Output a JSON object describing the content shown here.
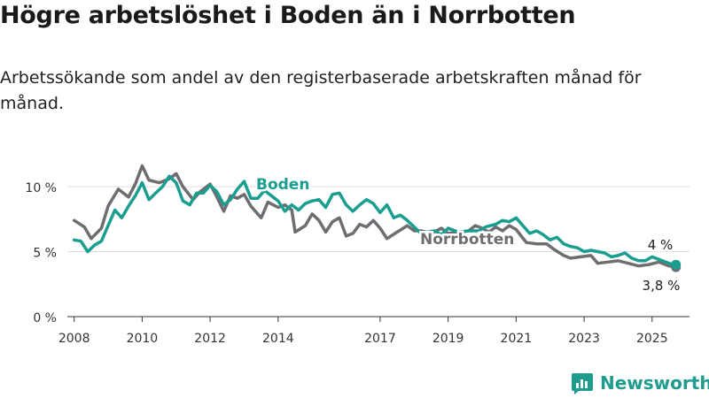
{
  "title": "Högre arbetslöshet i Boden än i Norrbotten",
  "subtitle": "Arbetssökande som andel av den registerbaserade arbetskraften månad för månad.",
  "brand": {
    "name": "Newsworthy",
    "icon": "newsworthy-logo-icon",
    "color": "#1f9c8d"
  },
  "colors": {
    "boden": "#1a9e8f",
    "norrbotten": "#6f6d71",
    "grid": "#dddddd",
    "axis": "#333333"
  },
  "chart_data": {
    "type": "line",
    "xlim": [
      2007.8,
      2026.1
    ],
    "ylim": [
      0,
      10
    ],
    "yticks": [
      0,
      5,
      10
    ],
    "ytick_labels": [
      "0 %",
      "5 %",
      "10 %"
    ],
    "xticks": [
      2008,
      2010,
      2012,
      2014,
      2017,
      2019,
      2021,
      2023,
      2025
    ],
    "xtick_labels": [
      "2008",
      "2010",
      "2012",
      "2014",
      "2017",
      "2019",
      "2021",
      "2023",
      "2025"
    ],
    "grid": true,
    "series": [
      {
        "name": "Norrbotten",
        "end_label": "3,8 %",
        "x": [
          2008.0,
          2008.3,
          2008.5,
          2008.8,
          2009.0,
          2009.3,
          2009.6,
          2009.8,
          2010.0,
          2010.2,
          2010.5,
          2010.8,
          2011.0,
          2011.2,
          2011.5,
          2011.7,
          2012.0,
          2012.2,
          2012.4,
          2012.6,
          2012.8,
          2013.0,
          2013.2,
          2013.5,
          2013.7,
          2014.0,
          2014.2,
          2014.4,
          2014.5,
          2014.8,
          2015.0,
          2015.2,
          2015.4,
          2015.6,
          2015.8,
          2016.0,
          2016.2,
          2016.4,
          2016.6,
          2016.8,
          2017.0,
          2017.2,
          2017.5,
          2017.8,
          2018.0,
          2018.2,
          2018.5,
          2018.8,
          2019.0,
          2019.3,
          2019.6,
          2019.8,
          2020.0,
          2020.2,
          2020.4,
          2020.6,
          2020.8,
          2021.0,
          2021.3,
          2021.6,
          2021.9,
          2022.1,
          2022.4,
          2022.6,
          2022.9,
          2023.2,
          2023.4,
          2023.7,
          2024.0,
          2024.3,
          2024.6,
          2024.9,
          2025.2,
          2025.5,
          2025.7
        ],
        "y": [
          7.4,
          6.9,
          6.0,
          6.8,
          8.5,
          9.8,
          9.2,
          10.2,
          11.6,
          10.5,
          10.3,
          10.6,
          11.0,
          10.0,
          9.0,
          9.6,
          10.2,
          9.2,
          8.1,
          9.3,
          9.1,
          9.4,
          8.5,
          7.6,
          8.8,
          8.4,
          8.6,
          8.2,
          6.5,
          7.0,
          7.9,
          7.4,
          6.5,
          7.3,
          7.6,
          6.2,
          6.4,
          7.1,
          6.9,
          7.4,
          6.8,
          6.0,
          6.5,
          7.0,
          6.6,
          6.6,
          6.4,
          6.8,
          6.4,
          6.5,
          6.6,
          7.0,
          6.8,
          6.5,
          6.9,
          6.6,
          7.0,
          6.7,
          5.7,
          5.6,
          5.6,
          5.2,
          4.7,
          4.5,
          4.6,
          4.7,
          4.1,
          4.2,
          4.3,
          4.1,
          3.9,
          4.0,
          4.2,
          3.9,
          3.8
        ]
      },
      {
        "name": "Boden",
        "end_label": "4 %",
        "x": [
          2008.0,
          2008.2,
          2008.4,
          2008.6,
          2008.8,
          2009.0,
          2009.2,
          2009.4,
          2009.6,
          2009.8,
          2010.0,
          2010.2,
          2010.4,
          2010.6,
          2010.8,
          2011.0,
          2011.2,
          2011.4,
          2011.6,
          2011.8,
          2012.0,
          2012.2,
          2012.4,
          2012.6,
          2012.8,
          2013.0,
          2013.2,
          2013.4,
          2013.6,
          2013.8,
          2014.0,
          2014.2,
          2014.4,
          2014.6,
          2014.8,
          2015.0,
          2015.2,
          2015.4,
          2015.6,
          2015.8,
          2016.0,
          2016.2,
          2016.4,
          2016.6,
          2016.8,
          2017.0,
          2017.2,
          2017.4,
          2017.6,
          2017.8,
          2018.0,
          2018.2,
          2018.4,
          2018.6,
          2018.8,
          2019.0,
          2019.3,
          2019.6,
          2019.9,
          2020.1,
          2020.4,
          2020.6,
          2020.8,
          2021.0,
          2021.2,
          2021.4,
          2021.6,
          2021.8,
          2022.0,
          2022.2,
          2022.4,
          2022.6,
          2022.8,
          2023.0,
          2023.2,
          2023.4,
          2023.6,
          2023.8,
          2024.0,
          2024.2,
          2024.4,
          2024.6,
          2024.8,
          2025.0,
          2025.2,
          2025.4,
          2025.6,
          2025.7
        ],
        "y": [
          5.9,
          5.8,
          5.0,
          5.5,
          5.8,
          7.0,
          8.2,
          7.6,
          8.5,
          9.3,
          10.3,
          9.0,
          9.5,
          10.0,
          10.8,
          10.3,
          8.9,
          8.6,
          9.5,
          9.5,
          10.1,
          9.6,
          8.6,
          9.0,
          9.8,
          10.4,
          9.1,
          9.1,
          9.7,
          9.3,
          8.9,
          8.1,
          8.6,
          8.2,
          8.7,
          8.9,
          9.0,
          8.4,
          9.4,
          9.5,
          8.6,
          8.1,
          8.6,
          9.0,
          8.7,
          8.0,
          8.6,
          7.6,
          7.8,
          7.4,
          6.9,
          6.4,
          6.5,
          6.6,
          6.3,
          6.8,
          6.5,
          6.6,
          6.6,
          6.9,
          7.1,
          7.4,
          7.3,
          7.6,
          7.0,
          6.4,
          6.6,
          6.3,
          5.9,
          6.1,
          5.6,
          5.4,
          5.3,
          5.0,
          5.1,
          5.0,
          4.9,
          4.6,
          4.7,
          4.9,
          4.5,
          4.3,
          4.3,
          4.6,
          4.4,
          4.2,
          4.0,
          4.0
        ]
      }
    ]
  }
}
